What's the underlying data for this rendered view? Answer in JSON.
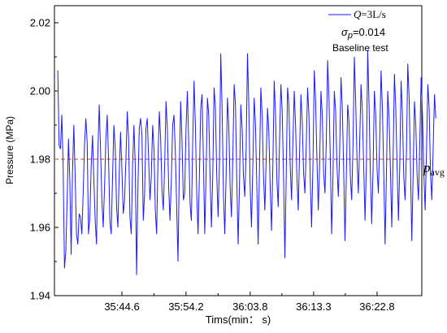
{
  "chart_data": {
    "type": "line",
    "xlabel": "Tims(min： s)",
    "ylabel": "Pressure (MPa)",
    "ylim": [
      1.94,
      2.025
    ],
    "y_ticks": [
      1.94,
      1.96,
      1.98,
      2.0,
      2.02
    ],
    "y_tick_labels": [
      "1.94",
      "1.96",
      "1.98",
      "2.00",
      "2.02"
    ],
    "x_tick_labels": [
      "35:44.6",
      "35:54.2",
      "36:03.8",
      "36:13.3",
      "36:22.8"
    ],
    "x_ticks_s": [
      44.6,
      54.2,
      63.8,
      73.3,
      82.8
    ],
    "xlim_s": [
      34.5,
      89.5
    ],
    "grid": false,
    "legend": {
      "position": "top-right",
      "series_label_italic": "Q",
      "series_label_rest": "=3L/s",
      "sigma_symbol": "σ",
      "sigma_sub": "p",
      "sigma_value": "=0.014",
      "note": "Baseline test"
    },
    "reference_line": {
      "value": 1.98,
      "label_main": "p",
      "label_sub": "avg",
      "color": "#e53935",
      "style": "dashed"
    },
    "series": [
      {
        "color": "#1a1aff",
        "x_start_s": 35.0,
        "x_step_s": 0.2,
        "values": [
          2.006,
          1.984,
          1.983,
          1.993,
          1.978,
          1.948,
          1.953,
          1.968,
          1.986,
          1.974,
          1.952,
          1.976,
          1.99,
          1.975,
          1.958,
          1.955,
          1.964,
          1.963,
          1.958,
          1.97,
          1.984,
          1.992,
          1.985,
          1.958,
          1.963,
          1.978,
          1.987,
          1.974,
          1.962,
          1.955,
          1.982,
          1.996,
          1.983,
          1.968,
          1.96,
          1.972,
          1.986,
          1.993,
          1.98,
          1.962,
          1.958,
          1.975,
          1.99,
          1.983,
          1.966,
          1.96,
          1.976,
          1.988,
          1.977,
          1.964,
          1.968,
          1.98,
          1.994,
          1.986,
          1.963,
          1.958,
          1.978,
          1.99,
          1.978,
          1.946,
          1.972,
          1.989,
          1.992,
          1.987,
          1.962,
          1.97,
          1.989,
          1.992,
          1.98,
          1.968,
          1.975,
          1.99,
          1.983,
          1.965,
          1.958,
          1.98,
          1.994,
          1.986,
          1.971,
          1.965,
          1.978,
          1.997,
          1.989,
          1.972,
          1.962,
          1.974,
          1.99,
          1.993,
          1.982,
          1.966,
          1.95,
          1.978,
          1.997,
          1.985,
          1.968,
          1.97,
          1.989,
          2.0,
          1.985,
          1.967,
          1.962,
          1.985,
          2.003,
          1.99,
          1.97,
          1.958,
          1.975,
          1.995,
          1.999,
          1.98,
          1.958,
          1.975,
          1.998,
          1.993,
          1.975,
          1.96,
          1.975,
          2.001,
          1.995,
          1.975,
          1.963,
          1.978,
          2.011,
          1.995,
          1.97,
          1.958,
          1.975,
          1.998,
          1.99,
          1.972,
          1.963,
          1.98,
          2.002,
          1.996,
          1.974,
          1.955,
          1.972,
          1.996,
          1.989,
          1.975,
          1.969,
          1.983,
          2.011,
          1.996,
          1.972,
          1.96,
          1.978,
          1.998,
          1.99,
          1.972,
          1.955,
          1.978,
          2.001,
          1.993,
          1.975,
          1.965,
          1.98,
          1.995,
          1.988,
          1.972,
          1.959,
          1.978,
          2.003,
          1.993,
          1.974,
          1.966,
          1.985,
          2.002,
          1.994,
          1.975,
          1.951,
          1.975,
          2.001,
          1.996,
          1.978,
          1.968,
          1.985,
          2.0,
          1.99,
          1.975,
          1.965,
          1.982,
          1.999,
          1.991,
          1.976,
          1.97,
          1.984,
          2.001,
          1.993,
          1.974,
          1.96,
          1.978,
          2.006,
          1.997,
          1.98,
          1.965,
          1.978,
          2.0,
          1.993,
          1.976,
          1.97,
          1.985,
          2.009,
          1.998,
          1.98,
          1.958,
          1.975,
          2.0,
          1.994,
          1.978,
          1.969,
          1.982,
          2.004,
          1.995,
          1.977,
          1.956,
          1.975,
          1.996,
          1.991,
          1.975,
          1.968,
          1.984,
          2.01,
          1.997,
          1.98,
          1.97,
          1.985,
          2.002,
          1.994,
          1.978,
          1.962,
          1.978,
          2.012,
          1.996,
          1.976,
          1.961,
          1.977,
          2.0,
          1.993,
          1.977,
          1.97,
          1.986,
          2.006,
          1.995,
          1.976,
          1.955,
          1.975,
          2.0,
          1.992,
          1.977,
          1.96,
          1.98,
          2.005,
          1.995,
          1.978,
          1.962,
          1.978,
          2.003,
          1.993,
          1.975,
          1.968,
          1.982,
          2.008,
          1.998,
          1.978,
          1.956,
          1.975,
          1.997,
          1.99,
          1.975,
          1.968,
          1.985,
          2.004,
          1.993,
          1.976,
          1.965,
          1.982,
          2.002,
          1.995,
          1.976,
          1.968,
          1.983,
          1.999,
          1.992
        ]
      }
    ]
  }
}
